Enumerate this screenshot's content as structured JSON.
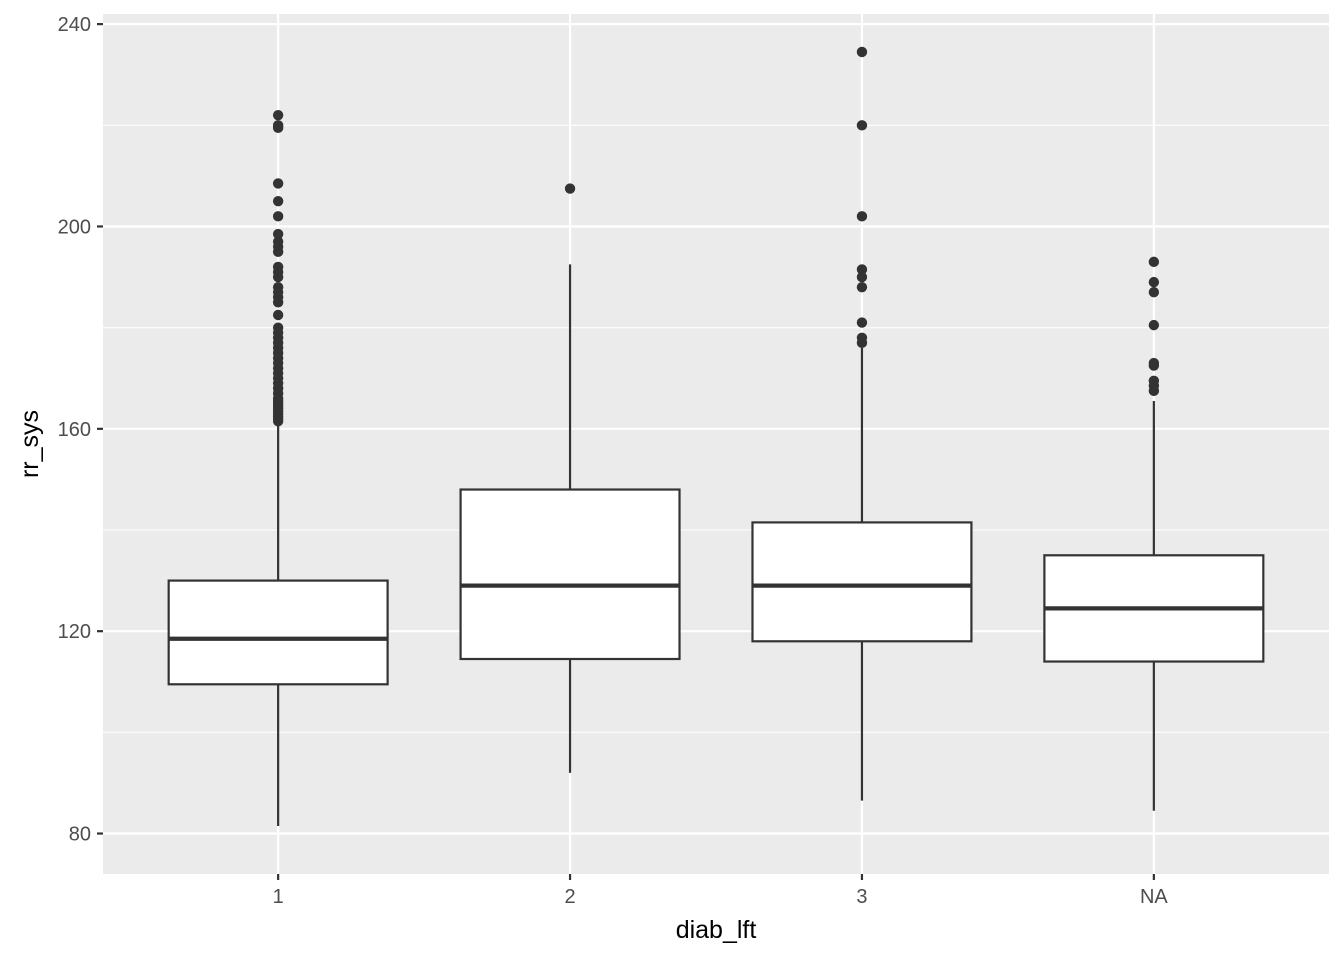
{
  "chart_data": {
    "type": "boxplot",
    "title": "",
    "xlabel": "diab_lft",
    "ylabel": "rr_sys",
    "categories": [
      "1",
      "2",
      "3",
      "NA"
    ],
    "ylim": [
      72,
      242
    ],
    "yticks": [
      80,
      120,
      160,
      200,
      240
    ],
    "grid": true,
    "legend": "none",
    "boxes": [
      {
        "category": "1",
        "whisker_low": 81.5,
        "q1": 109.5,
        "median": 118.5,
        "q3": 130,
        "whisker_high": 161,
        "outliers": [
          161.5,
          162,
          162.5,
          163,
          163.5,
          164,
          164.5,
          165,
          165.5,
          166,
          167,
          168,
          169,
          170,
          171,
          172,
          173,
          174,
          175,
          176,
          177,
          178,
          179,
          180,
          182.5,
          185,
          186,
          187,
          188,
          190,
          191,
          192,
          195,
          196,
          197,
          198.5,
          202,
          205,
          208.5,
          219.5,
          220,
          222
        ]
      },
      {
        "category": "2",
        "whisker_low": 92,
        "q1": 114.5,
        "median": 129,
        "q3": 148,
        "whisker_high": 192.5,
        "outliers": [
          207.5
        ]
      },
      {
        "category": "3",
        "whisker_low": 86.5,
        "q1": 118,
        "median": 129,
        "q3": 141.5,
        "whisker_high": 176,
        "outliers": [
          177,
          178,
          181,
          188,
          190,
          191.5,
          202,
          220,
          234.5
        ]
      },
      {
        "category": "NA",
        "whisker_low": 84.5,
        "q1": 114,
        "median": 124.5,
        "q3": 135,
        "whisker_high": 165.5,
        "outliers": [
          167.5,
          168.5,
          169.5,
          172.5,
          173,
          180.5,
          187,
          189,
          193
        ]
      }
    ],
    "colors": {
      "panel": "#ebebeb",
      "grid": "#ffffff",
      "box_fill": "#ffffff",
      "box_stroke": "#333333",
      "tick_text": "#4d4d4d",
      "axis_title": "#000000"
    }
  }
}
